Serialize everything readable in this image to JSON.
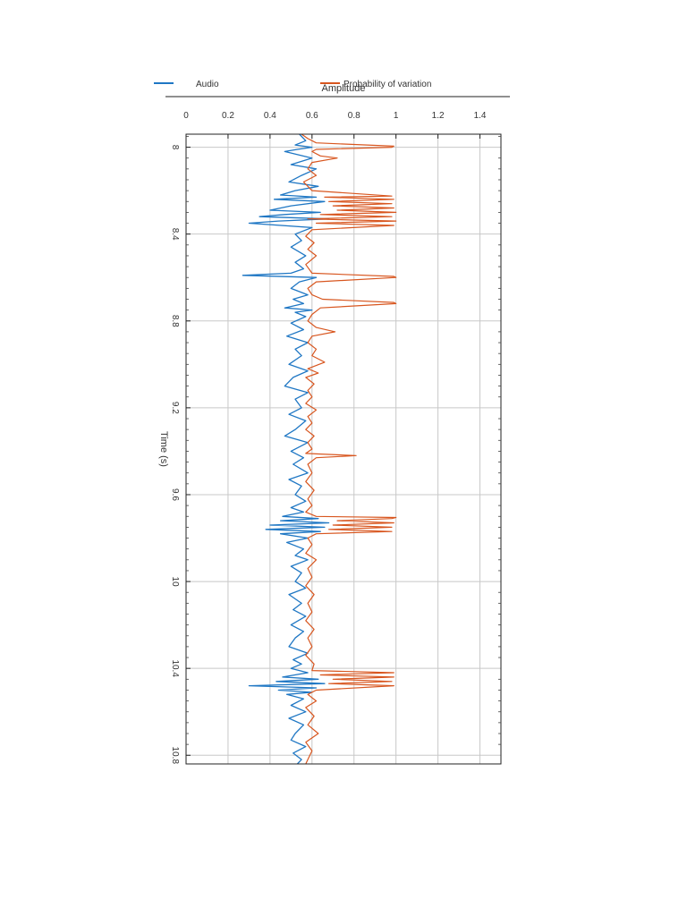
{
  "chart_data": {
    "type": "line",
    "orientation": "rotated-90-clockwise",
    "title": "",
    "xlabel": "Time (s)",
    "ylabel": "Amplitude",
    "xlim": [
      7.94,
      10.84
    ],
    "ylim": [
      0,
      1.5
    ],
    "xticks": [
      8,
      8.4,
      8.8,
      9.2,
      9.6,
      10,
      10.4,
      10.8
    ],
    "xtick_labels": [
      "8",
      "8.4",
      "8.8",
      "9.2",
      "9.6",
      "10",
      "10.4",
      "10.8"
    ],
    "yticks": [
      0,
      0.2,
      0.4,
      0.6,
      0.8,
      1,
      1.2,
      1.4
    ],
    "ytick_labels": [
      "0",
      "0.2",
      "0.4",
      "0.6",
      "0.8",
      "1",
      "1.2",
      "1.4"
    ],
    "grid": true,
    "legend_position": "top, outside plot",
    "series": [
      {
        "name": "Audio",
        "color": "#1f77c4",
        "x": [
          7.94,
          7.97,
          7.99,
          8.0,
          8.01,
          8.02,
          8.05,
          8.08,
          8.1,
          8.13,
          8.16,
          8.18,
          8.2,
          8.22,
          8.23,
          8.24,
          8.25,
          8.27,
          8.29,
          8.3,
          8.31,
          8.32,
          8.33,
          8.34,
          8.35,
          8.37,
          8.4,
          8.43,
          8.46,
          8.5,
          8.53,
          8.56,
          8.58,
          8.59,
          8.6,
          8.62,
          8.65,
          8.68,
          8.7,
          8.72,
          8.74,
          8.75,
          8.76,
          8.78,
          8.81,
          8.84,
          8.87,
          8.9,
          8.93,
          8.96,
          9.0,
          9.03,
          9.06,
          9.1,
          9.13,
          9.16,
          9.2,
          9.23,
          9.26,
          9.3,
          9.33,
          9.36,
          9.4,
          9.43,
          9.46,
          9.5,
          9.53,
          9.56,
          9.6,
          9.63,
          9.66,
          9.68,
          9.7,
          9.71,
          9.72,
          9.73,
          9.74,
          9.75,
          9.76,
          9.77,
          9.78,
          9.8,
          9.82,
          9.85,
          9.88,
          9.9,
          9.93,
          9.96,
          10.0,
          10.03,
          10.06,
          10.1,
          10.13,
          10.16,
          10.2,
          10.23,
          10.26,
          10.3,
          10.33,
          10.36,
          10.38,
          10.4,
          10.42,
          10.44,
          10.45,
          10.46,
          10.47,
          10.48,
          10.49,
          10.5,
          10.51,
          10.52,
          10.54,
          10.57,
          10.6,
          10.63,
          10.66,
          10.7,
          10.73,
          10.76,
          10.79,
          10.82,
          10.84
        ],
        "y": [
          0.54,
          0.57,
          0.52,
          0.6,
          0.53,
          0.47,
          0.6,
          0.5,
          0.62,
          0.55,
          0.49,
          0.63,
          0.52,
          0.45,
          0.62,
          0.42,
          0.66,
          0.5,
          0.4,
          0.64,
          0.47,
          0.35,
          0.68,
          0.44,
          0.3,
          0.6,
          0.52,
          0.55,
          0.5,
          0.57,
          0.52,
          0.56,
          0.5,
          0.27,
          0.62,
          0.54,
          0.5,
          0.58,
          0.51,
          0.56,
          0.47,
          0.6,
          0.52,
          0.57,
          0.5,
          0.56,
          0.48,
          0.58,
          0.52,
          0.55,
          0.49,
          0.58,
          0.51,
          0.47,
          0.58,
          0.52,
          0.55,
          0.49,
          0.57,
          0.52,
          0.47,
          0.58,
          0.5,
          0.56,
          0.51,
          0.58,
          0.49,
          0.55,
          0.52,
          0.57,
          0.5,
          0.56,
          0.46,
          0.63,
          0.45,
          0.68,
          0.4,
          0.66,
          0.38,
          0.64,
          0.45,
          0.58,
          0.48,
          0.56,
          0.52,
          0.58,
          0.5,
          0.55,
          0.52,
          0.57,
          0.49,
          0.55,
          0.51,
          0.57,
          0.5,
          0.56,
          0.52,
          0.49,
          0.58,
          0.51,
          0.55,
          0.5,
          0.58,
          0.46,
          0.63,
          0.43,
          0.66,
          0.3,
          0.62,
          0.44,
          0.6,
          0.48,
          0.56,
          0.5,
          0.57,
          0.49,
          0.56,
          0.52,
          0.5,
          0.57,
          0.51,
          0.55,
          0.53
        ]
      },
      {
        "name": "Probability of variation",
        "color": "#d8561f",
        "x": [
          7.94,
          7.96,
          7.98,
          7.995,
          8.0,
          8.01,
          8.02,
          8.04,
          8.05,
          8.07,
          8.1,
          8.13,
          8.16,
          8.2,
          8.225,
          8.23,
          8.24,
          8.25,
          8.26,
          8.27,
          8.28,
          8.29,
          8.3,
          8.31,
          8.32,
          8.33,
          8.34,
          8.35,
          8.36,
          8.38,
          8.41,
          8.44,
          8.47,
          8.5,
          8.54,
          8.58,
          8.595,
          8.6,
          8.62,
          8.65,
          8.68,
          8.7,
          8.715,
          8.72,
          8.74,
          8.77,
          8.8,
          8.83,
          8.85,
          8.87,
          8.9,
          8.93,
          8.96,
          8.99,
          9.02,
          9.04,
          9.06,
          9.09,
          9.12,
          9.15,
          9.18,
          9.21,
          9.24,
          9.27,
          9.3,
          9.33,
          9.36,
          9.39,
          9.41,
          9.42,
          9.43,
          9.46,
          9.5,
          9.54,
          9.58,
          9.62,
          9.65,
          9.68,
          9.7,
          9.705,
          9.71,
          9.72,
          9.73,
          9.74,
          9.75,
          9.76,
          9.77,
          9.78,
          9.8,
          9.83,
          9.87,
          9.9,
          9.94,
          9.98,
          10.02,
          10.06,
          10.1,
          10.14,
          10.18,
          10.22,
          10.26,
          10.3,
          10.34,
          10.38,
          10.41,
          10.42,
          10.43,
          10.44,
          10.45,
          10.46,
          10.47,
          10.48,
          10.5,
          10.52,
          10.55,
          10.58,
          10.62,
          10.66,
          10.7,
          10.74,
          10.78,
          10.82,
          10.84
        ],
        "y": [
          0.55,
          0.58,
          0.62,
          0.99,
          0.98,
          0.62,
          0.6,
          0.64,
          0.72,
          0.6,
          0.58,
          0.62,
          0.56,
          0.6,
          0.98,
          0.66,
          0.99,
          0.68,
          0.98,
          0.7,
          0.99,
          0.72,
          1.0,
          0.64,
          0.98,
          0.58,
          1.0,
          0.62,
          0.99,
          0.6,
          0.57,
          0.61,
          0.58,
          0.62,
          0.57,
          0.6,
          0.99,
          1.0,
          0.62,
          0.58,
          0.6,
          0.65,
          0.99,
          1.0,
          0.64,
          0.6,
          0.58,
          0.62,
          0.71,
          0.6,
          0.58,
          0.62,
          0.6,
          0.66,
          0.58,
          0.63,
          0.57,
          0.61,
          0.58,
          0.6,
          0.57,
          0.62,
          0.58,
          0.6,
          0.57,
          0.61,
          0.58,
          0.6,
          0.57,
          0.81,
          0.62,
          0.58,
          0.6,
          0.57,
          0.61,
          0.58,
          0.6,
          0.57,
          0.62,
          1.0,
          0.98,
          0.72,
          0.99,
          0.7,
          0.98,
          0.68,
          0.98,
          0.62,
          0.58,
          0.6,
          0.57,
          0.62,
          0.58,
          0.6,
          0.57,
          0.61,
          0.58,
          0.6,
          0.57,
          0.61,
          0.58,
          0.6,
          0.57,
          0.61,
          0.6,
          0.99,
          0.64,
          0.99,
          0.7,
          0.98,
          0.68,
          0.99,
          0.62,
          0.58,
          0.62,
          0.57,
          0.61,
          0.58,
          0.63,
          0.57,
          0.6,
          0.58,
          0.57
        ]
      }
    ]
  }
}
